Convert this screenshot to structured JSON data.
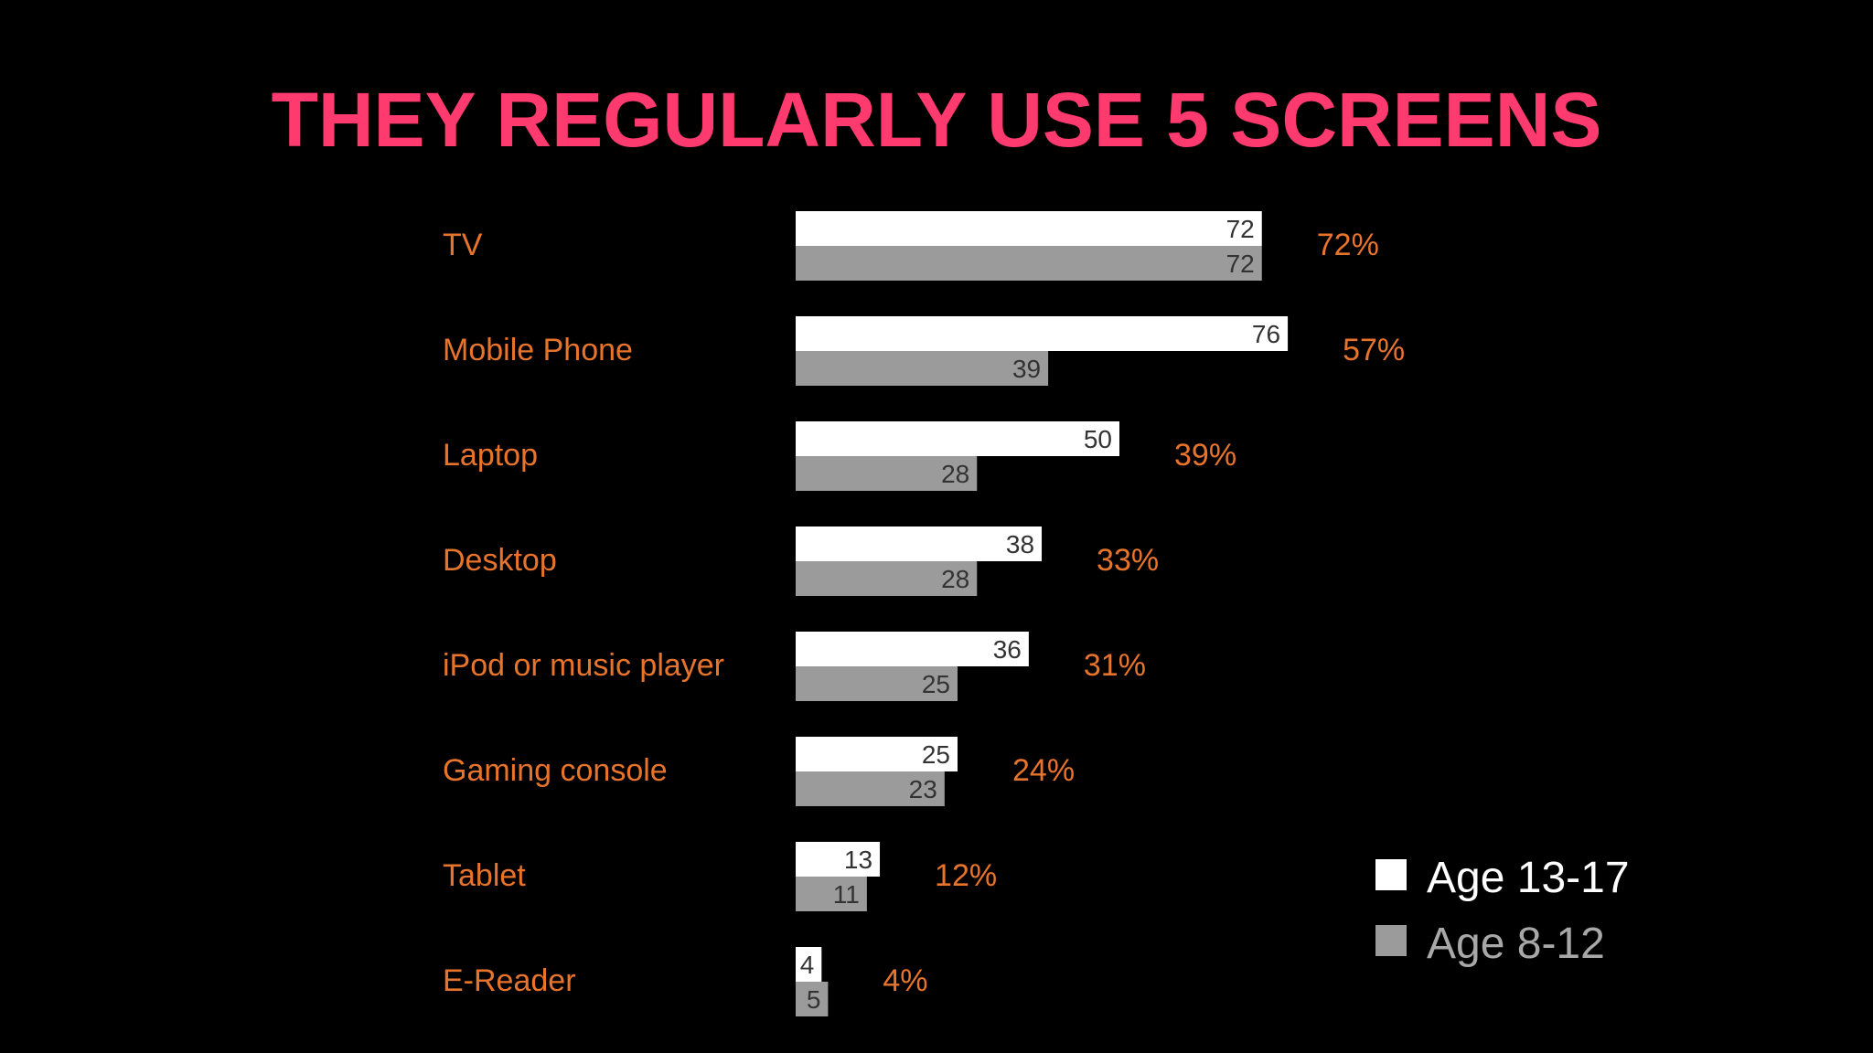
{
  "colors": {
    "background": "#000000",
    "title": "#ff3a6e",
    "category_label": "#e8742c",
    "total_label": "#e8742c",
    "series_primary": "#ffffff",
    "series_secondary": "#9b9b9b",
    "value_label": "#333333",
    "legend_text_primary": "#ffffff",
    "legend_text_secondary": "#a8a8a8"
  },
  "chart_data": {
    "type": "bar",
    "orientation": "horizontal",
    "title": "THEY REGULARLY USE 5 SCREENS",
    "categories": [
      "TV",
      "Mobile Phone",
      "Laptop",
      "Desktop",
      "iPod or music player",
      "Gaming console",
      "Tablet",
      "E-Reader"
    ],
    "series": [
      {
        "name": "Age 13-17",
        "values": [
          72,
          76,
          50,
          38,
          36,
          25,
          13,
          4
        ]
      },
      {
        "name": "Age 8-12",
        "values": [
          72,
          39,
          28,
          28,
          25,
          23,
          11,
          5
        ]
      }
    ],
    "totals": [
      "72%",
      "57%",
      "39%",
      "33%",
      "31%",
      "24%",
      "12%",
      "4%"
    ],
    "legend_position": "bottom-right",
    "grid": false
  }
}
